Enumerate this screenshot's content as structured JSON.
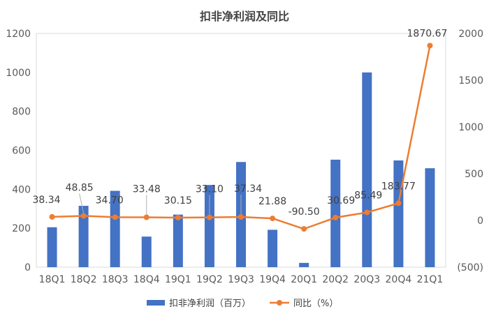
{
  "chart_data": {
    "type": "bar",
    "title": "扣非净利润及同比",
    "categories": [
      "18Q1",
      "18Q2",
      "18Q3",
      "18Q4",
      "19Q1",
      "19Q2",
      "19Q3",
      "19Q4",
      "20Q1",
      "20Q2",
      "20Q3",
      "20Q4",
      "21Q1"
    ],
    "series": [
      {
        "name": "扣非净利润（百万）",
        "type": "bar",
        "axis": "left",
        "color": "#4472C4",
        "values": [
          205,
          315,
          392,
          157,
          270,
          422,
          540,
          192,
          22,
          552,
          1000,
          548,
          508
        ]
      },
      {
        "name": "同比（%）",
        "type": "line",
        "axis": "right",
        "color": "#ED7D31",
        "values": [
          38.34,
          48.85,
          34.7,
          33.48,
          30.15,
          33.1,
          37.34,
          21.88,
          -90.5,
          30.69,
          85.49,
          183.77,
          1870.67
        ],
        "labels": [
          "38.34",
          "48.85",
          "34.70",
          "33.48",
          "30.15",
          "33.10",
          "37.34",
          "21.88",
          "-90.50",
          "30.69",
          "85.49",
          "183.77",
          "1870.67"
        ]
      }
    ],
    "y_left": {
      "min": 0,
      "max": 1200,
      "ticks": [
        "0",
        "200",
        "400",
        "600",
        "800",
        "1000",
        "1200"
      ]
    },
    "y_right": {
      "min": -500,
      "max": 2000,
      "ticks": [
        "(500)",
        "0",
        "500",
        "1000",
        "1500",
        "2000"
      ]
    },
    "legend_position": "bottom",
    "grid": false
  }
}
